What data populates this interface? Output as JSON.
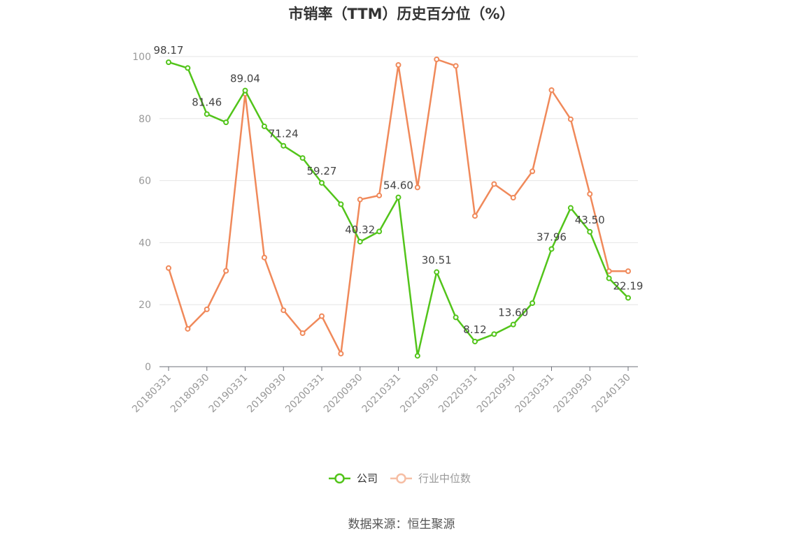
{
  "chart_data": {
    "type": "line",
    "title": "市销率（TTM）历史百分位（%）",
    "x": [
      "20180331",
      "20180630",
      "20180930",
      "20181231",
      "20190331",
      "20190630",
      "20190930",
      "20191231",
      "20200331",
      "20200630",
      "20200930",
      "20201231",
      "20210331",
      "20210630",
      "20210930",
      "20211231",
      "20220331",
      "20220630",
      "20220930",
      "20221231",
      "20230331",
      "20230630",
      "20230930",
      "20231231",
      "20240130"
    ],
    "x_tick_labels": [
      "20180331",
      "20180930",
      "20190331",
      "20190930",
      "20200331",
      "20200930",
      "20210331",
      "20210930",
      "20220331",
      "20220930",
      "20230331",
      "20230930",
      "20240130"
    ],
    "ylim": [
      0,
      100
    ],
    "y_ticks": [
      0,
      20,
      40,
      60,
      80,
      100
    ],
    "grid": true,
    "legend_position": "bottom",
    "series": [
      {
        "name": "公司",
        "color": "#52c41a",
        "values": [
          98.17,
          96.3,
          81.46,
          78.8,
          89.04,
          77.5,
          71.24,
          67.3,
          59.27,
          52.4,
          40.32,
          43.6,
          54.6,
          3.5,
          30.51,
          15.9,
          8.12,
          10.5,
          13.6,
          20.5,
          37.96,
          51.2,
          43.5,
          28.5,
          22.19
        ],
        "labels": {
          "0": "98.17",
          "2": "81.46",
          "4": "89.04",
          "6": "71.24",
          "8": "59.27",
          "10": "40.32",
          "12": "54.60",
          "14": "30.51",
          "16": "8.12",
          "18": "13.60",
          "20": "37.96",
          "22": "43.50",
          "24": "22.19"
        }
      },
      {
        "name": "行业中位数",
        "color": "#f0895a",
        "values": [
          31.8,
          12.2,
          18.5,
          30.9,
          88.0,
          35.2,
          18.2,
          10.8,
          16.3,
          4.2,
          53.9,
          55.2,
          97.3,
          57.8,
          99.1,
          97.0,
          48.6,
          58.9,
          54.5,
          63.0,
          89.2,
          79.8,
          55.7,
          30.8,
          30.8
        ]
      }
    ]
  },
  "source": "数据来源：恒生聚源"
}
